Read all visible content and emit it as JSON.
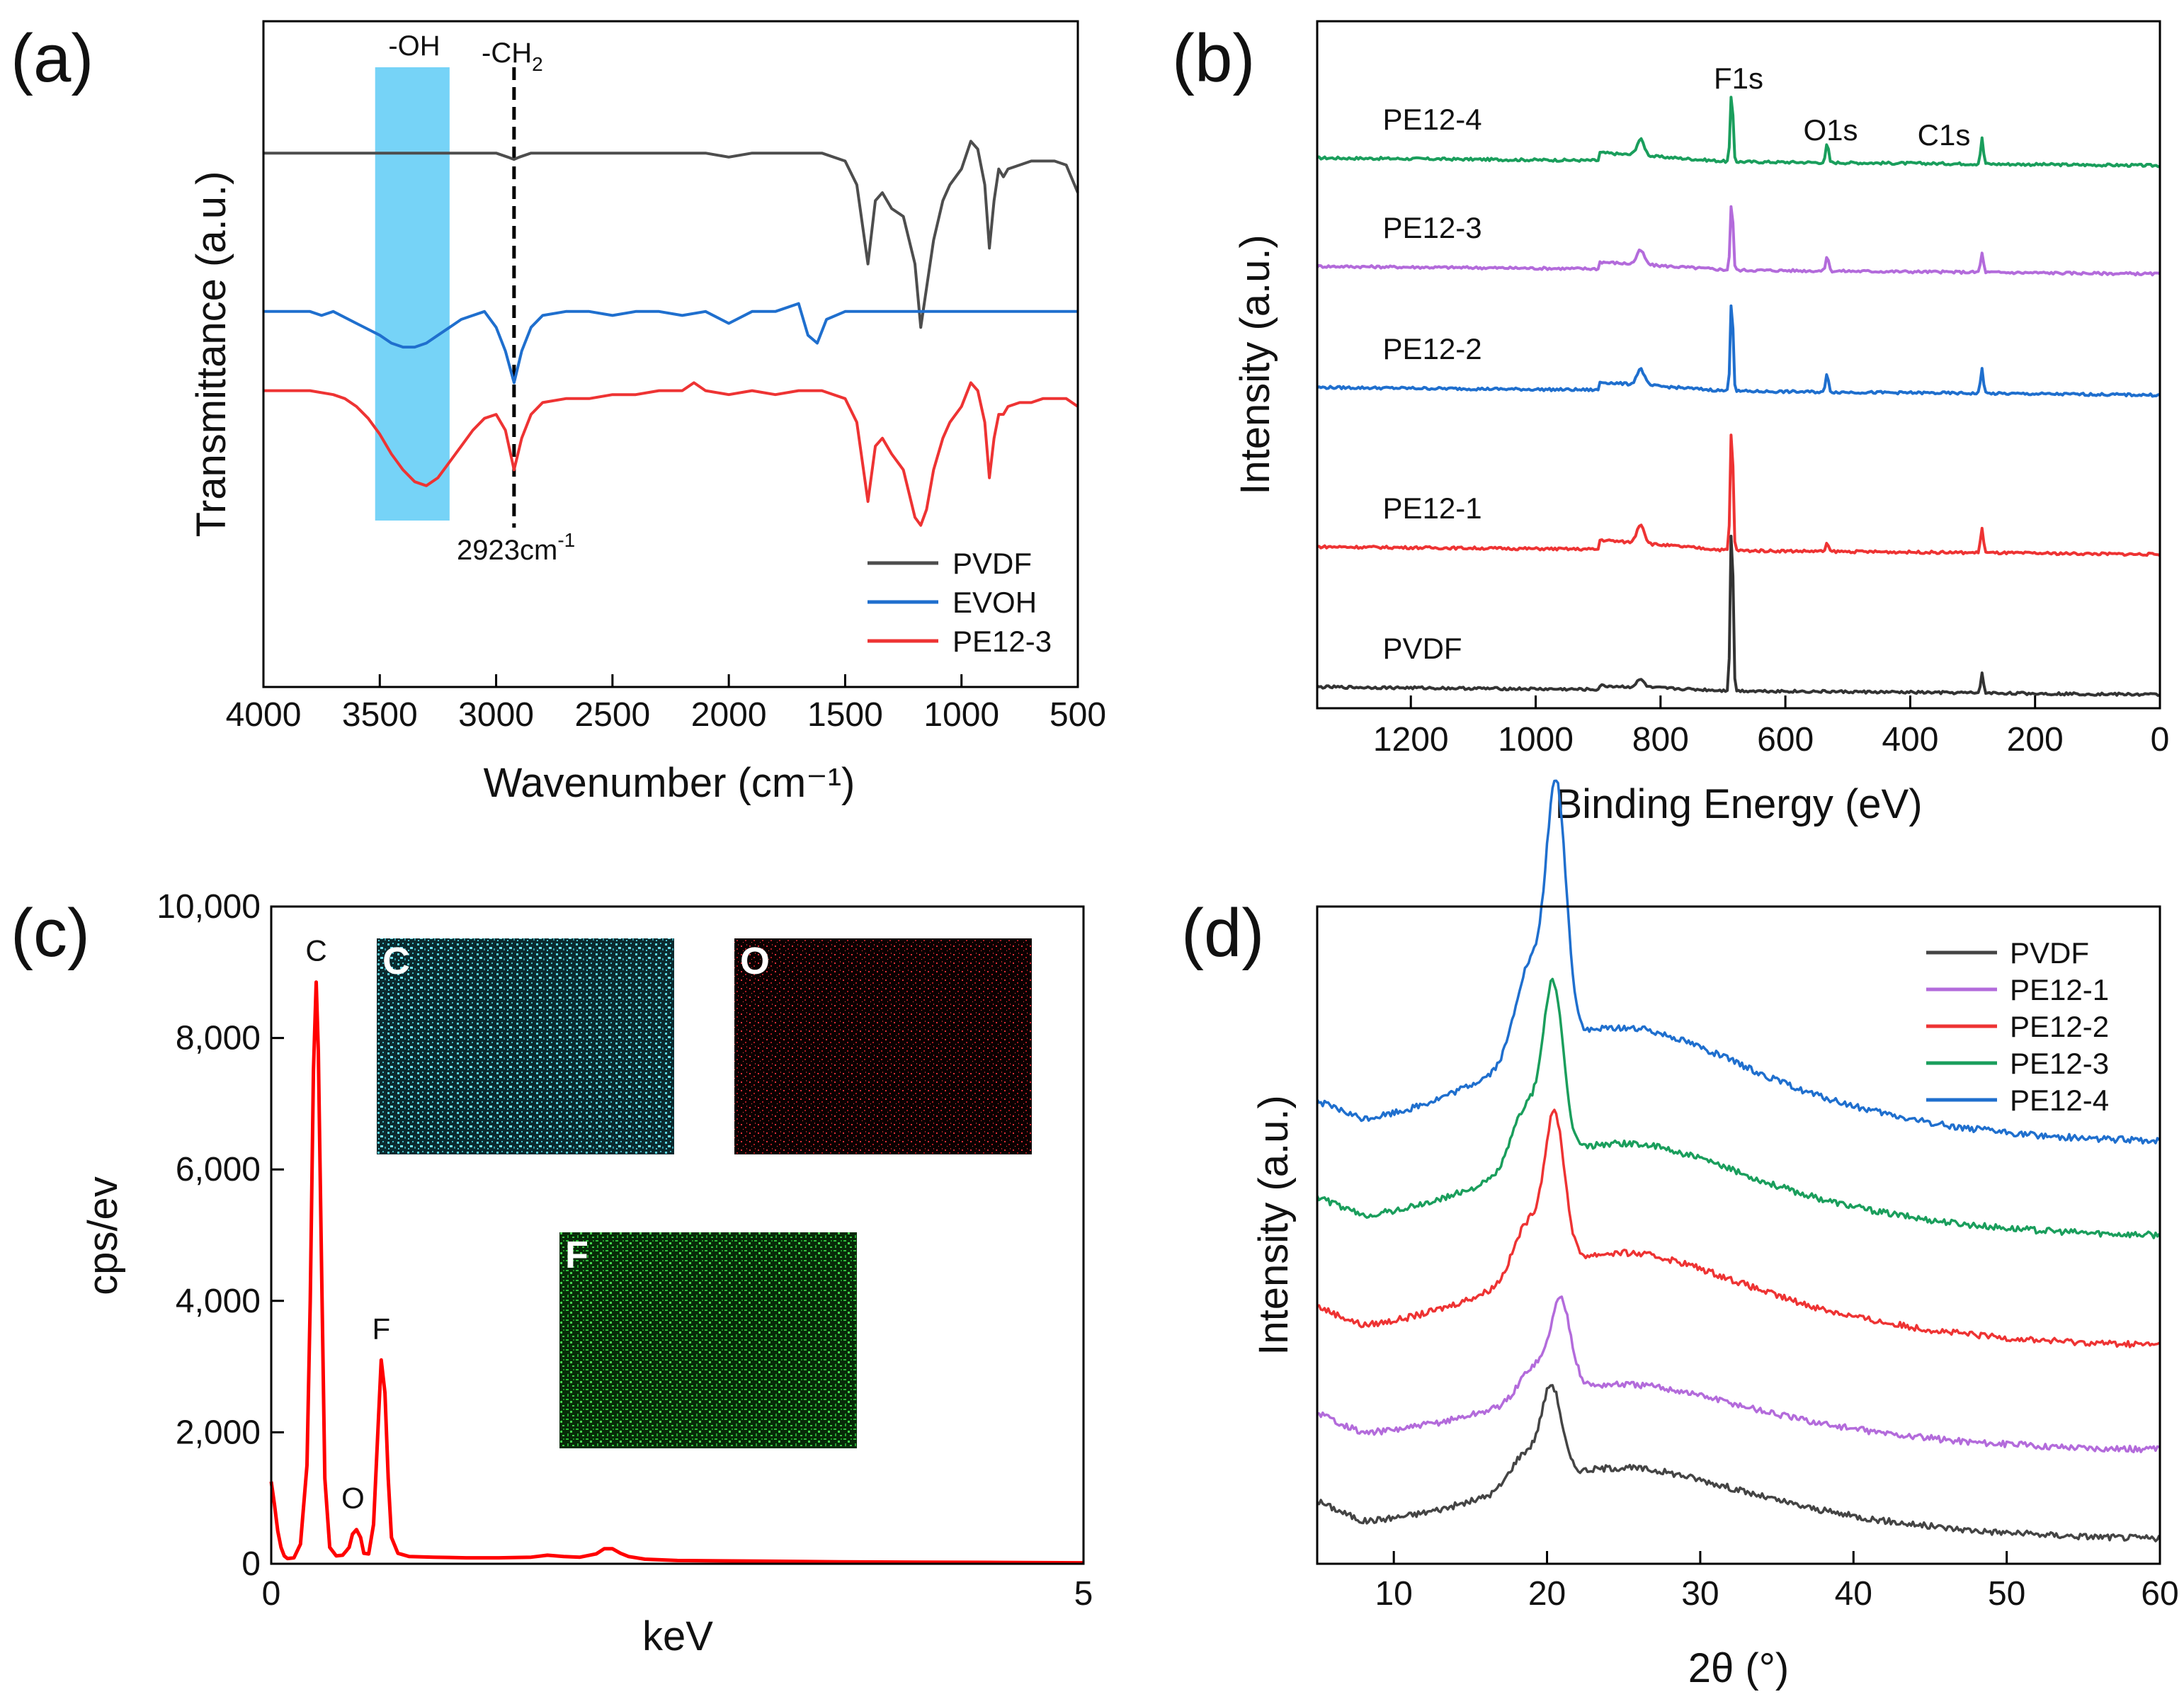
{
  "chart_data": [
    {
      "panel": "(a)",
      "type": "line",
      "xlabel": "Wavenumber (cm⁻¹)",
      "ylabel": "Transmittance (a.u.)",
      "xlim": [
        4000,
        500
      ],
      "x_reversed": true,
      "x_ticks": [
        "4000",
        "3500",
        "3000",
        "2500",
        "2000",
        "1500",
        "1000",
        "500"
      ],
      "grid": false,
      "legend_position": "bottom-right",
      "series": [
        {
          "name": "PVDF",
          "color": "#4d4d4d",
          "offset": 0.83,
          "x": [
            4000,
            3900,
            3800,
            3700,
            3600,
            3500,
            3400,
            3300,
            3200,
            3100,
            3000,
            2950,
            2923,
            2900,
            2850,
            2800,
            2700,
            2600,
            2500,
            2400,
            2300,
            2200,
            2100,
            2000,
            1900,
            1800,
            1700,
            1600,
            1500,
            1450,
            1402,
            1370,
            1340,
            1300,
            1250,
            1200,
            1175,
            1150,
            1120,
            1080,
            1050,
            1000,
            960,
            930,
            900,
            880,
            860,
            840,
            820,
            800,
            750,
            700,
            650,
            600,
            550,
            500
          ],
          "y": [
            0,
            0,
            0,
            0,
            0,
            0,
            0,
            0,
            0,
            0,
            0,
            -0.005,
            -0.008,
            -0.005,
            0,
            0,
            0,
            0,
            0,
            0,
            0,
            0,
            0,
            -0.005,
            0,
            0,
            0,
            0,
            -0.01,
            -0.04,
            -0.14,
            -0.06,
            -0.05,
            -0.07,
            -0.08,
            -0.14,
            -0.22,
            -0.17,
            -0.11,
            -0.06,
            -0.04,
            -0.02,
            0.015,
            0.005,
            -0.04,
            -0.12,
            -0.06,
            -0.02,
            -0.03,
            -0.02,
            -0.015,
            -0.01,
            -0.01,
            -0.01,
            -0.015,
            -0.05
          ]
        },
        {
          "name": "EVOH",
          "color": "#1f6fce",
          "offset": 0.57,
          "x": [
            4000,
            3900,
            3800,
            3750,
            3700,
            3600,
            3500,
            3450,
            3400,
            3350,
            3300,
            3250,
            3200,
            3150,
            3100,
            3050,
            3000,
            2960,
            2923,
            2890,
            2850,
            2800,
            2700,
            2600,
            2500,
            2400,
            2300,
            2200,
            2100,
            2000,
            1900,
            1800,
            1700,
            1660,
            1620,
            1580,
            1500,
            1400,
            1300,
            1200,
            1100,
            1000,
            900,
            800,
            700,
            600,
            500
          ],
          "y": [
            0,
            0,
            0,
            -0.005,
            0,
            -0.015,
            -0.03,
            -0.04,
            -0.045,
            -0.045,
            -0.04,
            -0.03,
            -0.02,
            -0.01,
            -0.005,
            0,
            -0.02,
            -0.05,
            -0.09,
            -0.05,
            -0.02,
            -0.005,
            0,
            0,
            -0.005,
            0,
            0,
            -0.005,
            0,
            -0.015,
            0,
            0,
            0.01,
            -0.03,
            -0.04,
            -0.01,
            0,
            0,
            0,
            0,
            0,
            0,
            0,
            0,
            0,
            0,
            0
          ]
        },
        {
          "name": "PE12-3",
          "color": "#ee3333",
          "offset": 0.44,
          "x": [
            4000,
            3900,
            3800,
            3700,
            3650,
            3600,
            3550,
            3500,
            3450,
            3400,
            3350,
            3300,
            3250,
            3200,
            3150,
            3100,
            3050,
            3000,
            2960,
            2923,
            2890,
            2850,
            2800,
            2700,
            2600,
            2500,
            2400,
            2300,
            2200,
            2150,
            2100,
            2000,
            1900,
            1800,
            1700,
            1600,
            1500,
            1450,
            1402,
            1370,
            1340,
            1300,
            1250,
            1200,
            1175,
            1150,
            1120,
            1080,
            1050,
            1000,
            960,
            930,
            900,
            880,
            860,
            840,
            820,
            800,
            750,
            700,
            650,
            600,
            550,
            500
          ],
          "y": [
            0,
            0,
            0,
            -0.005,
            -0.01,
            -0.02,
            -0.035,
            -0.055,
            -0.08,
            -0.1,
            -0.115,
            -0.12,
            -0.11,
            -0.09,
            -0.07,
            -0.05,
            -0.035,
            -0.03,
            -0.05,
            -0.1,
            -0.06,
            -0.03,
            -0.015,
            -0.01,
            -0.01,
            -0.005,
            -0.005,
            0,
            0,
            0.01,
            0,
            -0.005,
            0,
            -0.005,
            0,
            0,
            -0.01,
            -0.04,
            -0.14,
            -0.07,
            -0.06,
            -0.08,
            -0.1,
            -0.16,
            -0.17,
            -0.15,
            -0.1,
            -0.06,
            -0.04,
            -0.02,
            0.01,
            0,
            -0.04,
            -0.11,
            -0.06,
            -0.03,
            -0.03,
            -0.02,
            -0.015,
            -0.015,
            -0.01,
            -0.01,
            -0.01,
            -0.02
          ]
        }
      ],
      "annotations": {
        "oh_band_label": "-OH",
        "oh_band_range": [
          3520,
          3200
        ],
        "ch2_label": "-CH",
        "ch2_subscript": "2",
        "ch2_line_x": 2923,
        "peak_label": "2923cm",
        "peak_superscript": "-1"
      }
    },
    {
      "panel": "(b)",
      "type": "line",
      "xlabel": "Binding Energy (eV)",
      "ylabel": "Intensity (a.u.)",
      "xlim": [
        1350,
        0
      ],
      "x_reversed": true,
      "x_ticks": [
        "1200",
        "1000",
        "800",
        "600",
        "400",
        "200",
        "0"
      ],
      "grid": false,
      "peak_labels": {
        "F1s": "F1s",
        "O1s": "O1s",
        "C1s": "C1s"
      },
      "series": [
        {
          "name": "PE12-4",
          "color": "#1a9e5c",
          "offset": 0.83,
          "peaks": [
            {
              "x": 686,
              "h": 0.11
            },
            {
              "x": 533,
              "h": 0.03
            },
            {
              "x": 285,
              "h": 0.04
            }
          ],
          "shoulder": 0.025
        },
        {
          "name": "PE12-3",
          "color": "#b36bdb",
          "offset": 0.66,
          "peaks": [
            {
              "x": 686,
              "h": 0.11
            },
            {
              "x": 533,
              "h": 0.025
            },
            {
              "x": 285,
              "h": 0.03
            }
          ],
          "shoulder": 0.022
        },
        {
          "name": "PE12-2",
          "color": "#1f6fce",
          "offset": 0.47,
          "peaks": [
            {
              "x": 686,
              "h": 0.15
            },
            {
              "x": 533,
              "h": 0.03
            },
            {
              "x": 285,
              "h": 0.04
            }
          ],
          "shoulder": 0.025
        },
        {
          "name": "PE12-1",
          "color": "#ee3333",
          "offset": 0.22,
          "peaks": [
            {
              "x": 686,
              "h": 0.2
            },
            {
              "x": 533,
              "h": 0.012
            },
            {
              "x": 285,
              "h": 0.04
            }
          ],
          "shoulder": 0.03
        },
        {
          "name": "PVDF",
          "color": "#333333",
          "offset": 0.0,
          "peaks": [
            {
              "x": 686,
              "h": 0.27
            },
            {
              "x": 285,
              "h": 0.03
            }
          ],
          "shoulder": 0.012
        }
      ]
    },
    {
      "panel": "(c)",
      "type": "line",
      "xlabel": "keV",
      "ylabel": "cps/ev",
      "xlim": [
        0,
        5
      ],
      "ylim": [
        0,
        10000
      ],
      "x_ticks": [
        "0",
        "5"
      ],
      "y_ticks": [
        "0",
        "2,000",
        "4,000",
        "6,000",
        "8,000",
        "10,000"
      ],
      "grid": false,
      "series": [
        {
          "name": "",
          "color": "#ff0000",
          "x": [
            0.0,
            0.02,
            0.04,
            0.06,
            0.08,
            0.1,
            0.14,
            0.18,
            0.22,
            0.24,
            0.26,
            0.277,
            0.29,
            0.31,
            0.33,
            0.36,
            0.4,
            0.44,
            0.48,
            0.5,
            0.525,
            0.55,
            0.57,
            0.6,
            0.63,
            0.66,
            0.677,
            0.7,
            0.72,
            0.74,
            0.78,
            0.85,
            1.0,
            1.2,
            1.4,
            1.6,
            1.7,
            1.8,
            1.9,
            2.0,
            2.05,
            2.1,
            2.15,
            2.2,
            2.3,
            2.5,
            3.0,
            3.5,
            4.0,
            4.5,
            5.0
          ],
          "y": [
            1250,
            900,
            500,
            250,
            120,
            80,
            90,
            300,
            1500,
            4000,
            7500,
            8850,
            7800,
            4500,
            1300,
            250,
            120,
            130,
            250,
            450,
            520,
            400,
            160,
            150,
            600,
            2200,
            3100,
            2600,
            1300,
            400,
            160,
            110,
            100,
            90,
            90,
            100,
            130,
            110,
            100,
            150,
            230,
            230,
            160,
            110,
            70,
            50,
            40,
            30,
            25,
            20,
            15
          ]
        }
      ],
      "peak_labels": [
        {
          "text": "C",
          "x": 0.277,
          "y": 8850
        },
        {
          "text": "O",
          "x": 0.525,
          "y": 520
        },
        {
          "text": "F",
          "x": 0.677,
          "y": 3100
        }
      ],
      "map_insets": [
        {
          "label": "C",
          "color": "#56d3e0"
        },
        {
          "label": "O",
          "color": "#e0303a"
        },
        {
          "label": "F",
          "color": "#2fbf3a"
        }
      ]
    },
    {
      "panel": "(d)",
      "type": "line",
      "xlabel": "2θ (°)",
      "ylabel": "Intensity (a.u.)",
      "xlim": [
        5,
        60
      ],
      "x_ticks": [
        "10",
        "20",
        "30",
        "40",
        "50",
        "60"
      ],
      "grid": false,
      "legend_position": "top-right",
      "series": [
        {
          "name": "PVDF",
          "color": "#444444",
          "offset": 0.0,
          "peak_x": 20.3,
          "peak_h": 0.17,
          "hump": 0.12,
          "tail": 0.0
        },
        {
          "name": "PE12-1",
          "color": "#b36bdb",
          "offset": 0.17,
          "peak_x": 20.9,
          "peak_h": 0.17,
          "hump": 0.11,
          "tail": 0.0
        },
        {
          "name": "PE12-2",
          "color": "#ee3333",
          "offset": 0.37,
          "peak_x": 20.5,
          "peak_h": 0.28,
          "hump": 0.16,
          "tail": 0.0
        },
        {
          "name": "PE12-3",
          "color": "#1a9e5c",
          "offset": 0.58,
          "peak_x": 20.4,
          "peak_h": 0.32,
          "hump": 0.16,
          "tail": 0.0
        },
        {
          "name": "PE12-4",
          "color": "#1f6fce",
          "offset": 0.76,
          "peak_x": 20.6,
          "peak_h": 0.48,
          "hump": 0.2,
          "tail": 0.0
        }
      ]
    }
  ]
}
